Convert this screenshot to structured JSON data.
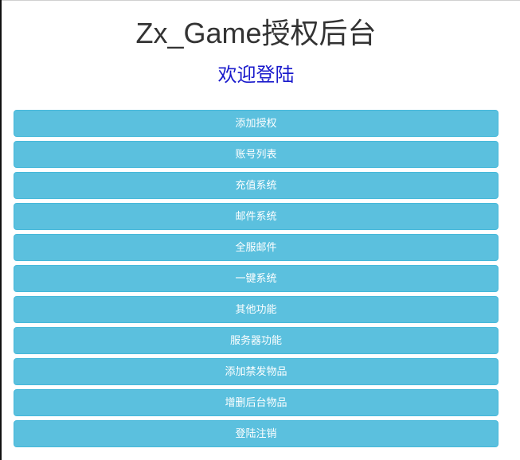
{
  "header": {
    "title": "Zx_Game授权后台",
    "subtitle": "欢迎登陆"
  },
  "menu": {
    "color": "#5bc0de",
    "items": [
      {
        "label": "添加授权"
      },
      {
        "label": "账号列表"
      },
      {
        "label": "充值系统"
      },
      {
        "label": "邮件系统"
      },
      {
        "label": "全服邮件"
      },
      {
        "label": "一键系统"
      },
      {
        "label": "其他功能"
      },
      {
        "label": "服务器功能"
      },
      {
        "label": "添加禁发物品"
      },
      {
        "label": "增删后台物品"
      },
      {
        "label": "登陆注销"
      }
    ]
  }
}
